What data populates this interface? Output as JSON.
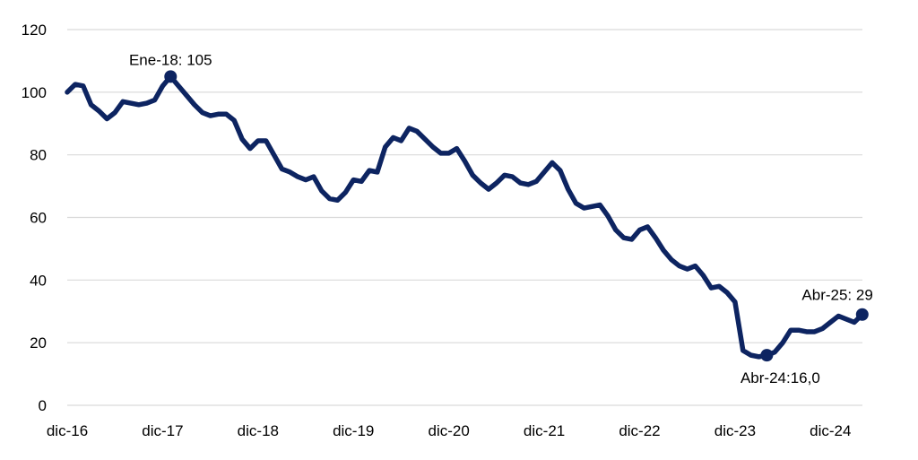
{
  "chart_data": {
    "type": "line",
    "title": "",
    "xlabel": "",
    "ylabel": "",
    "ylim": [
      0,
      120
    ],
    "yticks": [
      0,
      20,
      40,
      60,
      80,
      100,
      120
    ],
    "ytick_labels": [
      "0",
      "20",
      "40",
      "60",
      "80",
      "100",
      "120"
    ],
    "xtick_labels": [
      "dic-16",
      "dic-17",
      "dic-18",
      "dic-19",
      "dic-20",
      "dic-21",
      "dic-22",
      "dic-23",
      "dic-24"
    ],
    "grid": true,
    "legend": "none",
    "line_color": "#0d2461",
    "grid_color": "#d9d9d9",
    "x": [
      "dic-16",
      "ene-17",
      "feb-17",
      "mar-17",
      "abr-17",
      "may-17",
      "jun-17",
      "jul-17",
      "ago-17",
      "sep-17",
      "oct-17",
      "nov-17",
      "dic-17",
      "ene-18",
      "feb-18",
      "mar-18",
      "abr-18",
      "may-18",
      "jun-18",
      "jul-18",
      "ago-18",
      "sep-18",
      "oct-18",
      "nov-18",
      "dic-18",
      "ene-19",
      "feb-19",
      "mar-19",
      "abr-19",
      "may-19",
      "jun-19",
      "jul-19",
      "ago-19",
      "sep-19",
      "oct-19",
      "nov-19",
      "dic-19",
      "ene-20",
      "feb-20",
      "mar-20",
      "abr-20",
      "may-20",
      "jun-20",
      "jul-20",
      "ago-20",
      "sep-20",
      "oct-20",
      "nov-20",
      "dic-20",
      "ene-21",
      "feb-21",
      "mar-21",
      "abr-21",
      "may-21",
      "jun-21",
      "jul-21",
      "ago-21",
      "sep-21",
      "oct-21",
      "nov-21",
      "dic-21",
      "ene-22",
      "feb-22",
      "mar-22",
      "abr-22",
      "may-22",
      "jun-22",
      "jul-22",
      "ago-22",
      "sep-22",
      "oct-22",
      "nov-22",
      "dic-22",
      "ene-23",
      "feb-23",
      "mar-23",
      "abr-23",
      "may-23",
      "jun-23",
      "jul-23",
      "ago-23",
      "sep-23",
      "oct-23",
      "nov-23",
      "dic-23",
      "ene-24",
      "feb-24",
      "mar-24",
      "abr-24",
      "may-24",
      "jun-24",
      "jul-24",
      "ago-24",
      "sep-24",
      "oct-24",
      "nov-24",
      "dic-24",
      "ene-25",
      "feb-25",
      "mar-25",
      "abr-25"
    ],
    "series": [
      {
        "values": [
          100,
          102.5,
          102,
          96,
          94,
          91.5,
          93.5,
          97,
          96.5,
          96,
          96.5,
          97.5,
          102,
          105,
          102,
          99,
          96,
          93.5,
          92.5,
          93,
          93,
          91,
          85,
          82,
          84.5,
          84.5,
          80,
          75.5,
          74.5,
          73,
          72,
          73,
          68.5,
          66,
          65.5,
          68,
          72,
          71.5,
          75,
          74.5,
          82.5,
          85.5,
          84.5,
          88.5,
          87.5,
          85,
          82.5,
          80.5,
          80.5,
          82,
          78,
          73.5,
          71,
          69,
          71,
          73.5,
          73,
          71,
          70.5,
          71.5,
          74.5,
          77.5,
          75,
          69,
          64.5,
          63,
          63.5,
          64,
          60.5,
          56,
          53.5,
          53,
          56,
          57,
          53.5,
          49.5,
          46.5,
          44.5,
          43.5,
          44.5,
          41.5,
          37.5,
          38,
          36,
          33,
          17.5,
          16,
          15.5,
          16,
          17,
          20,
          24,
          24,
          23.5,
          23.5,
          24.5,
          26.5,
          28.5,
          27.5,
          26.5,
          29
        ]
      }
    ],
    "annotations": [
      {
        "x": "ene-18",
        "y": 105,
        "text": "Ene-18: 105",
        "pos": "above"
      },
      {
        "x": "abr-24",
        "y": 16,
        "text": "Abr-24:16,0",
        "pos": "below"
      },
      {
        "x": "abr-25",
        "y": 29,
        "text": "Abr-25: 29",
        "pos": "above-left"
      }
    ]
  }
}
